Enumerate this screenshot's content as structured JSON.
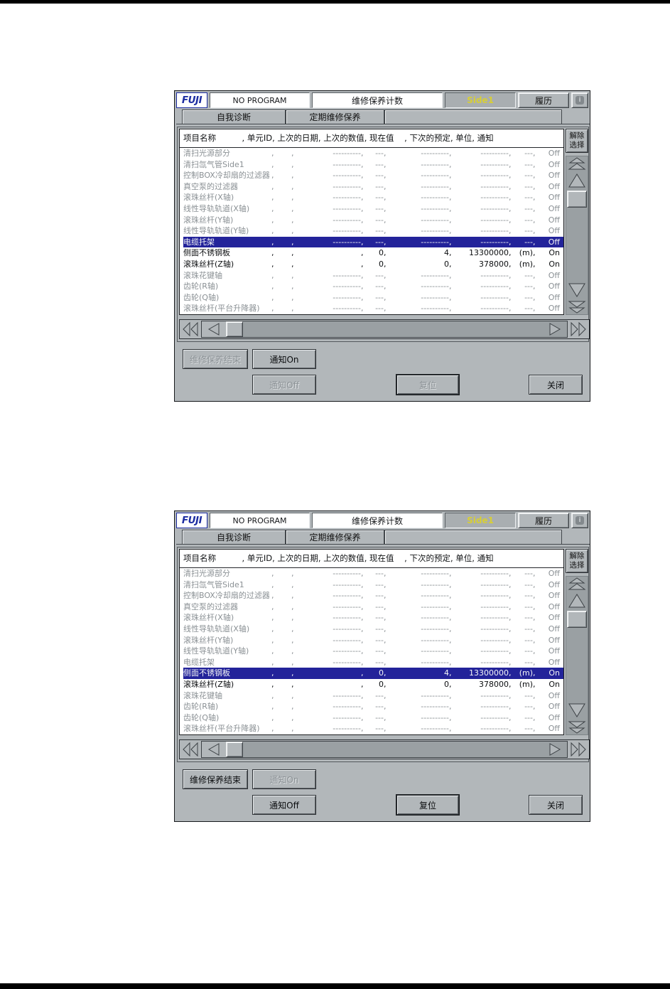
{
  "page": {
    "background": "#ffffff",
    "top_rule_color": "#000000",
    "bottom_rule_color": "#000000"
  },
  "colors": {
    "panel_gray": "#b2b7ba",
    "selected_row_blue": "#23239a",
    "disabled_text": "#8b9195",
    "side_label_yellow": "#d8cf35",
    "fuji_blue": "#1d2da2",
    "table_white": "#ffffff"
  },
  "ui": {
    "titlebar": {
      "logo": "FUJI",
      "program": "NO PROGRAM",
      "screen_title": "维修保养计数",
      "side": "Side1",
      "history": "履历",
      "info": "i"
    },
    "tabs": [
      {
        "label": "自我诊断",
        "active": false
      },
      {
        "label": "定期维修保养",
        "active": true
      }
    ],
    "deselect": {
      "line1": "解除",
      "line2": "选择"
    },
    "table": {
      "header": "项目名称          , 单元ID, 上次的日期, 上次的数值, 现在值    , 下次的预定, 单位, 通知",
      "separator": ",",
      "columns": [
        "项目名称",
        "单元ID",
        "上次的日期",
        "上次的数值",
        "现在值",
        "下次的预定",
        "单位",
        "通知"
      ],
      "rows": [
        {
          "name": "清扫光源部分",
          "cells": [
            "",
            "----------",
            "---",
            "----------",
            "----------",
            "---",
            "Off"
          ],
          "has_data": false
        },
        {
          "name": "清扫氙气管Side1",
          "cells": [
            "",
            "----------",
            "---",
            "----------",
            "----------",
            "---",
            "Off"
          ],
          "has_data": false
        },
        {
          "name": "控制BOX冷却扇的过滤器",
          "cells": [
            "",
            "----------",
            "---",
            "----------",
            "----------",
            "---",
            "Off"
          ],
          "has_data": false
        },
        {
          "name": "真空泵的过滤器",
          "cells": [
            "",
            "----------",
            "---",
            "----------",
            "----------",
            "---",
            "Off"
          ],
          "has_data": false
        },
        {
          "name": "滚珠丝杆(X轴)",
          "cells": [
            "",
            "----------",
            "---",
            "----------",
            "----------",
            "---",
            "Off"
          ],
          "has_data": false
        },
        {
          "name": "线性导轨轨道(X轴)",
          "cells": [
            "",
            "----------",
            "---",
            "----------",
            "----------",
            "---",
            "Off"
          ],
          "has_data": false
        },
        {
          "name": "滚珠丝杆(Y轴)",
          "cells": [
            "",
            "----------",
            "---",
            "----------",
            "----------",
            "---",
            "Off"
          ],
          "has_data": false
        },
        {
          "name": "线性导轨轨道(Y轴)",
          "cells": [
            "",
            "----------",
            "---",
            "----------",
            "----------",
            "---",
            "Off"
          ],
          "has_data": false
        },
        {
          "name": "电缆托架",
          "cells": [
            "",
            "----------",
            "---",
            "----------",
            "----------",
            "---",
            "Off"
          ],
          "has_data": false
        },
        {
          "name": "侧面不锈钢板",
          "cells": [
            "",
            "",
            "0",
            "4",
            "13300000",
            "(m)",
            "On"
          ],
          "has_data": true
        },
        {
          "name": "滚珠丝杆(Z轴)",
          "cells": [
            "",
            "",
            "0",
            "0",
            "378000",
            "(m)",
            "On"
          ],
          "has_data": true
        },
        {
          "name": "滚珠花键轴",
          "cells": [
            "",
            "----------",
            "---",
            "----------",
            "----------",
            "---",
            "Off"
          ],
          "has_data": false
        },
        {
          "name": "齿轮(R轴)",
          "cells": [
            "",
            "----------",
            "---",
            "----------",
            "----------",
            "---",
            "Off"
          ],
          "has_data": false
        },
        {
          "name": "齿轮(Q轴)",
          "cells": [
            "",
            "----------",
            "---",
            "----------",
            "----------",
            "---",
            "Off"
          ],
          "has_data": false
        },
        {
          "name": "滚珠丝杆(平台升降器)",
          "cells": [
            "",
            "----------",
            "---",
            "----------",
            "----------",
            "---",
            "Off"
          ],
          "has_data": false
        }
      ]
    }
  },
  "screens": [
    {
      "id": "maintenance-counter-screen-1",
      "selected_row_index": 8,
      "buttons": {
        "end_maintenance": {
          "label": "维修保养结束",
          "enabled": false
        },
        "notify_on": {
          "label": "通知On",
          "enabled": true
        },
        "notify_off": {
          "label": "通知Off",
          "enabled": false
        },
        "reset": {
          "label": "复位",
          "enabled": false
        },
        "close": {
          "label": "关闭",
          "enabled": true
        }
      }
    },
    {
      "id": "maintenance-counter-screen-2",
      "selected_row_index": 9,
      "buttons": {
        "end_maintenance": {
          "label": "维修保养结束",
          "enabled": true
        },
        "notify_on": {
          "label": "通知On",
          "enabled": false
        },
        "notify_off": {
          "label": "通知Off",
          "enabled": true
        },
        "reset": {
          "label": "复位",
          "enabled": true
        },
        "close": {
          "label": "关闭",
          "enabled": true
        }
      }
    }
  ]
}
